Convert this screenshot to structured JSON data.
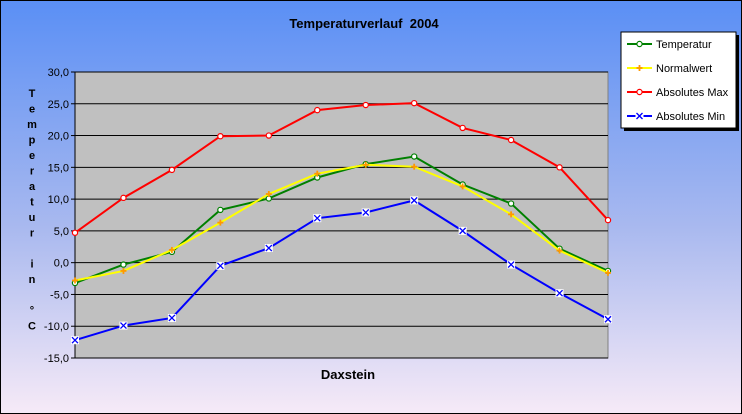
{
  "chart_data": {
    "type": "line",
    "title": "Temperaturverlauf  2004",
    "xlabel": "Daxstein",
    "ylabel": "Temperatur in °C",
    "ylabel_lines": [
      "T",
      "e",
      "m",
      "p",
      "e",
      "r",
      "a",
      "t",
      "u",
      "r",
      "",
      "i",
      "n",
      "",
      "°",
      "C"
    ],
    "ylim": [
      -15,
      30
    ],
    "yticks": [
      -15,
      -10,
      -5,
      0,
      5,
      10,
      15,
      20,
      25,
      30
    ],
    "ytick_labels": [
      "-15,0",
      "-10,0",
      "-5,0",
      "0,0",
      "5,0",
      "10,0",
      "15,0",
      "20,0",
      "25,0",
      "30,0"
    ],
    "x": [
      1,
      2,
      3,
      4,
      5,
      6,
      7,
      8,
      9,
      10,
      11,
      12
    ],
    "grid": true,
    "legend_position": "top-right",
    "series": [
      {
        "name": "Temperatur",
        "color": "#008000",
        "marker": "circle",
        "values": [
          -3.2,
          -0.3,
          1.7,
          8.3,
          10.1,
          13.4,
          15.5,
          16.7,
          12.3,
          9.3,
          2.2,
          -1.3
        ]
      },
      {
        "name": "Normalwert",
        "color": "#FFFF00",
        "marker": "plus",
        "values": [
          -2.8,
          -1.3,
          2.0,
          6.3,
          10.8,
          14.0,
          15.4,
          15.1,
          12.0,
          7.6,
          1.9,
          -1.6
        ]
      },
      {
        "name": "Absolutes Max",
        "color": "#FF0000",
        "marker": "circle",
        "values": [
          4.7,
          10.2,
          14.6,
          19.9,
          20.0,
          24.0,
          24.8,
          25.1,
          21.2,
          19.3,
          15.0,
          6.7
        ]
      },
      {
        "name": "Absolutes Min",
        "color": "#0000FF",
        "marker": "x",
        "values": [
          -12.2,
          -9.9,
          -8.7,
          -0.5,
          2.3,
          7.0,
          7.9,
          9.8,
          5.0,
          -0.3,
          -4.8,
          -8.9
        ]
      }
    ]
  }
}
